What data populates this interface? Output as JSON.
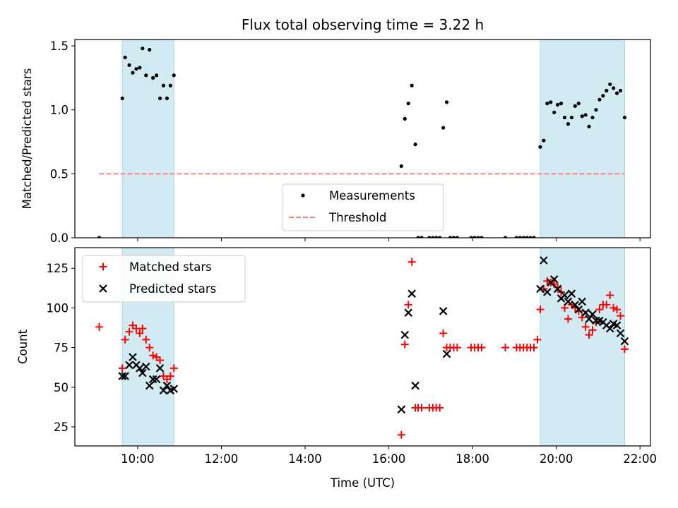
{
  "title": "Flux total observing time = 3.22 h",
  "colors": {
    "measurement": "#000000",
    "threshold": "#ff7f7f",
    "matched": "#ff0000",
    "predicted": "#000000",
    "span": "#add8e6"
  },
  "chart_data": [
    {
      "type": "scatter",
      "ylabel": "Matched/Predicted stars",
      "xlabel": "",
      "xlim": [
        "08:30",
        "22:15"
      ],
      "ylim": [
        0,
        1.55
      ],
      "xticks": [
        "10:00",
        "12:00",
        "14:00",
        "16:00",
        "18:00",
        "20:00",
        "22:00"
      ],
      "yticks": [
        "0.0",
        "0.5",
        "1.0",
        "1.5"
      ],
      "grid": false,
      "legend_position": "lower-center",
      "highlight_spans": [
        [
          "09:38",
          "10:52"
        ],
        [
          "19:37",
          "21:38"
        ]
      ],
      "threshold": {
        "name": "Threshold",
        "value": 0.5,
        "x_range": [
          "09:05",
          "21:38"
        ],
        "style": "dashed"
      },
      "series": [
        {
          "name": "Measurements",
          "marker": "dot",
          "points": [
            [
              "09:05",
              0.0
            ],
            [
              "09:38",
              1.09
            ],
            [
              "09:42",
              1.41
            ],
            [
              "09:48",
              1.35
            ],
            [
              "09:53",
              1.29
            ],
            [
              "09:58",
              1.32
            ],
            [
              "10:03",
              1.33
            ],
            [
              "10:07",
              1.48
            ],
            [
              "10:12",
              1.27
            ],
            [
              "10:17",
              1.47
            ],
            [
              "10:22",
              1.25
            ],
            [
              "10:27",
              1.27
            ],
            [
              "10:32",
              1.09
            ],
            [
              "10:37",
              1.19
            ],
            [
              "10:42",
              1.09
            ],
            [
              "10:47",
              1.19
            ],
            [
              "10:52",
              1.27
            ],
            [
              "16:18",
              0.56
            ],
            [
              "16:23",
              0.93
            ],
            [
              "16:28",
              1.05
            ],
            [
              "16:33",
              1.19
            ],
            [
              "16:38",
              0.73
            ],
            [
              "16:42",
              0.0
            ],
            [
              "16:47",
              0.0
            ],
            [
              "16:58",
              0.0
            ],
            [
              "17:03",
              0.0
            ],
            [
              "17:08",
              0.0
            ],
            [
              "17:13",
              0.0
            ],
            [
              "17:18",
              0.86
            ],
            [
              "17:23",
              1.06
            ],
            [
              "17:28",
              0.0
            ],
            [
              "17:33",
              0.0
            ],
            [
              "17:38",
              0.0
            ],
            [
              "17:58",
              0.0
            ],
            [
              "18:03",
              0.0
            ],
            [
              "18:08",
              0.0
            ],
            [
              "18:13",
              0.0
            ],
            [
              "18:47",
              0.0
            ],
            [
              "19:03",
              0.0
            ],
            [
              "19:08",
              0.0
            ],
            [
              "19:13",
              0.0
            ],
            [
              "19:18",
              0.0
            ],
            [
              "19:23",
              0.0
            ],
            [
              "19:28",
              0.0
            ],
            [
              "19:37",
              0.71
            ],
            [
              "19:42",
              0.76
            ],
            [
              "19:47",
              1.05
            ],
            [
              "19:52",
              1.06
            ],
            [
              "19:57",
              0.98
            ],
            [
              "20:02",
              1.04
            ],
            [
              "20:07",
              1.05
            ],
            [
              "20:12",
              0.94
            ],
            [
              "20:17",
              0.89
            ],
            [
              "20:22",
              0.94
            ],
            [
              "20:27",
              1.03
            ],
            [
              "20:32",
              1.05
            ],
            [
              "20:37",
              0.95
            ],
            [
              "20:42",
              0.96
            ],
            [
              "20:47",
              0.87
            ],
            [
              "20:52",
              0.94
            ],
            [
              "20:57",
              1.0
            ],
            [
              "21:02",
              1.08
            ],
            [
              "21:07",
              1.11
            ],
            [
              "21:12",
              1.15
            ],
            [
              "21:17",
              1.2
            ],
            [
              "21:22",
              1.17
            ],
            [
              "21:27",
              1.13
            ],
            [
              "21:32",
              1.15
            ],
            [
              "21:38",
              0.94
            ]
          ]
        }
      ]
    },
    {
      "type": "scatter",
      "ylabel": "Count",
      "xlabel": "Time (UTC)",
      "xlim": [
        "08:30",
        "22:15"
      ],
      "ylim": [
        13,
        138
      ],
      "xticks": [
        "10:00",
        "12:00",
        "14:00",
        "16:00",
        "18:00",
        "20:00",
        "22:00"
      ],
      "yticks": [
        "25",
        "50",
        "75",
        "100",
        "125"
      ],
      "grid": false,
      "legend_position": "upper-left",
      "highlight_spans": [
        [
          "09:38",
          "10:52"
        ],
        [
          "19:37",
          "21:38"
        ]
      ],
      "series": [
        {
          "name": "Matched stars",
          "marker": "plus",
          "points": [
            [
              "09:05",
              88
            ],
            [
              "09:38",
              62
            ],
            [
              "09:42",
              80
            ],
            [
              "09:48",
              85
            ],
            [
              "09:53",
              89
            ],
            [
              "09:58",
              87
            ],
            [
              "10:03",
              84
            ],
            [
              "10:07",
              87
            ],
            [
              "10:12",
              80
            ],
            [
              "10:17",
              75
            ],
            [
              "10:22",
              70
            ],
            [
              "10:27",
              69
            ],
            [
              "10:32",
              67
            ],
            [
              "10:37",
              57
            ],
            [
              "10:42",
              55
            ],
            [
              "10:47",
              57
            ],
            [
              "10:52",
              62
            ],
            [
              "16:18",
              20
            ],
            [
              "16:23",
              77
            ],
            [
              "16:28",
              102
            ],
            [
              "16:33",
              129
            ],
            [
              "16:38",
              37
            ],
            [
              "16:42",
              37
            ],
            [
              "16:47",
              37
            ],
            [
              "16:58",
              37
            ],
            [
              "17:03",
              37
            ],
            [
              "17:08",
              37
            ],
            [
              "17:13",
              37
            ],
            [
              "17:18",
              84
            ],
            [
              "17:23",
              75
            ],
            [
              "17:28",
              75
            ],
            [
              "17:33",
              75
            ],
            [
              "17:38",
              75
            ],
            [
              "17:58",
              75
            ],
            [
              "18:03",
              75
            ],
            [
              "18:08",
              75
            ],
            [
              "18:13",
              75
            ],
            [
              "18:47",
              75
            ],
            [
              "19:03",
              75
            ],
            [
              "19:08",
              75
            ],
            [
              "19:13",
              75
            ],
            [
              "19:18",
              75
            ],
            [
              "19:23",
              75
            ],
            [
              "19:28",
              75
            ],
            [
              "19:33",
              80
            ],
            [
              "19:37",
              99
            ],
            [
              "19:42",
              112
            ],
            [
              "19:47",
              117
            ],
            [
              "19:52",
              116
            ],
            [
              "19:57",
              115
            ],
            [
              "20:02",
              113
            ],
            [
              "20:07",
              110
            ],
            [
              "20:12",
              100
            ],
            [
              "20:17",
              93
            ],
            [
              "20:22",
              102
            ],
            [
              "20:27",
              100
            ],
            [
              "20:32",
              98
            ],
            [
              "20:37",
              94
            ],
            [
              "20:42",
              88
            ],
            [
              "20:47",
              83
            ],
            [
              "20:52",
              86
            ],
            [
              "20:57",
              91
            ],
            [
              "21:02",
              99
            ],
            [
              "21:07",
              102
            ],
            [
              "21:12",
              102
            ],
            [
              "21:17",
              108
            ],
            [
              "21:22",
              100
            ],
            [
              "21:27",
              99
            ],
            [
              "21:32",
              95
            ],
            [
              "21:38",
              74
            ]
          ]
        },
        {
          "name": "Predicted stars",
          "marker": "x",
          "points": [
            [
              "09:38",
              57
            ],
            [
              "09:42",
              57
            ],
            [
              "09:48",
              64
            ],
            [
              "09:53",
              69
            ],
            [
              "09:58",
              64
            ],
            [
              "10:03",
              62
            ],
            [
              "10:07",
              59
            ],
            [
              "10:12",
              63
            ],
            [
              "10:17",
              51
            ],
            [
              "10:22",
              55
            ],
            [
              "10:27",
              55
            ],
            [
              "10:32",
              62
            ],
            [
              "10:37",
              48
            ],
            [
              "10:42",
              51
            ],
            [
              "10:47",
              48
            ],
            [
              "10:52",
              49
            ],
            [
              "16:18",
              36
            ],
            [
              "16:23",
              83
            ],
            [
              "16:28",
              97
            ],
            [
              "16:33",
              109
            ],
            [
              "16:38",
              51
            ],
            [
              "17:18",
              98
            ],
            [
              "17:23",
              71
            ],
            [
              "19:37",
              112
            ],
            [
              "19:42",
              130
            ],
            [
              "19:47",
              110
            ],
            [
              "19:52",
              116
            ],
            [
              "19:57",
              118
            ],
            [
              "20:02",
              112
            ],
            [
              "20:07",
              106
            ],
            [
              "20:12",
              108
            ],
            [
              "20:17",
              104
            ],
            [
              "20:22",
              109
            ],
            [
              "20:27",
              102
            ],
            [
              "20:32",
              99
            ],
            [
              "20:37",
              104
            ],
            [
              "20:42",
              97
            ],
            [
              "20:47",
              93
            ],
            [
              "20:52",
              96
            ],
            [
              "20:57",
              92
            ],
            [
              "21:02",
              92
            ],
            [
              "21:07",
              91
            ],
            [
              "21:12",
              89
            ],
            [
              "21:17",
              87
            ],
            [
              "21:22",
              90
            ],
            [
              "21:27",
              89
            ],
            [
              "21:32",
              84
            ],
            [
              "21:38",
              79
            ]
          ]
        }
      ]
    }
  ]
}
